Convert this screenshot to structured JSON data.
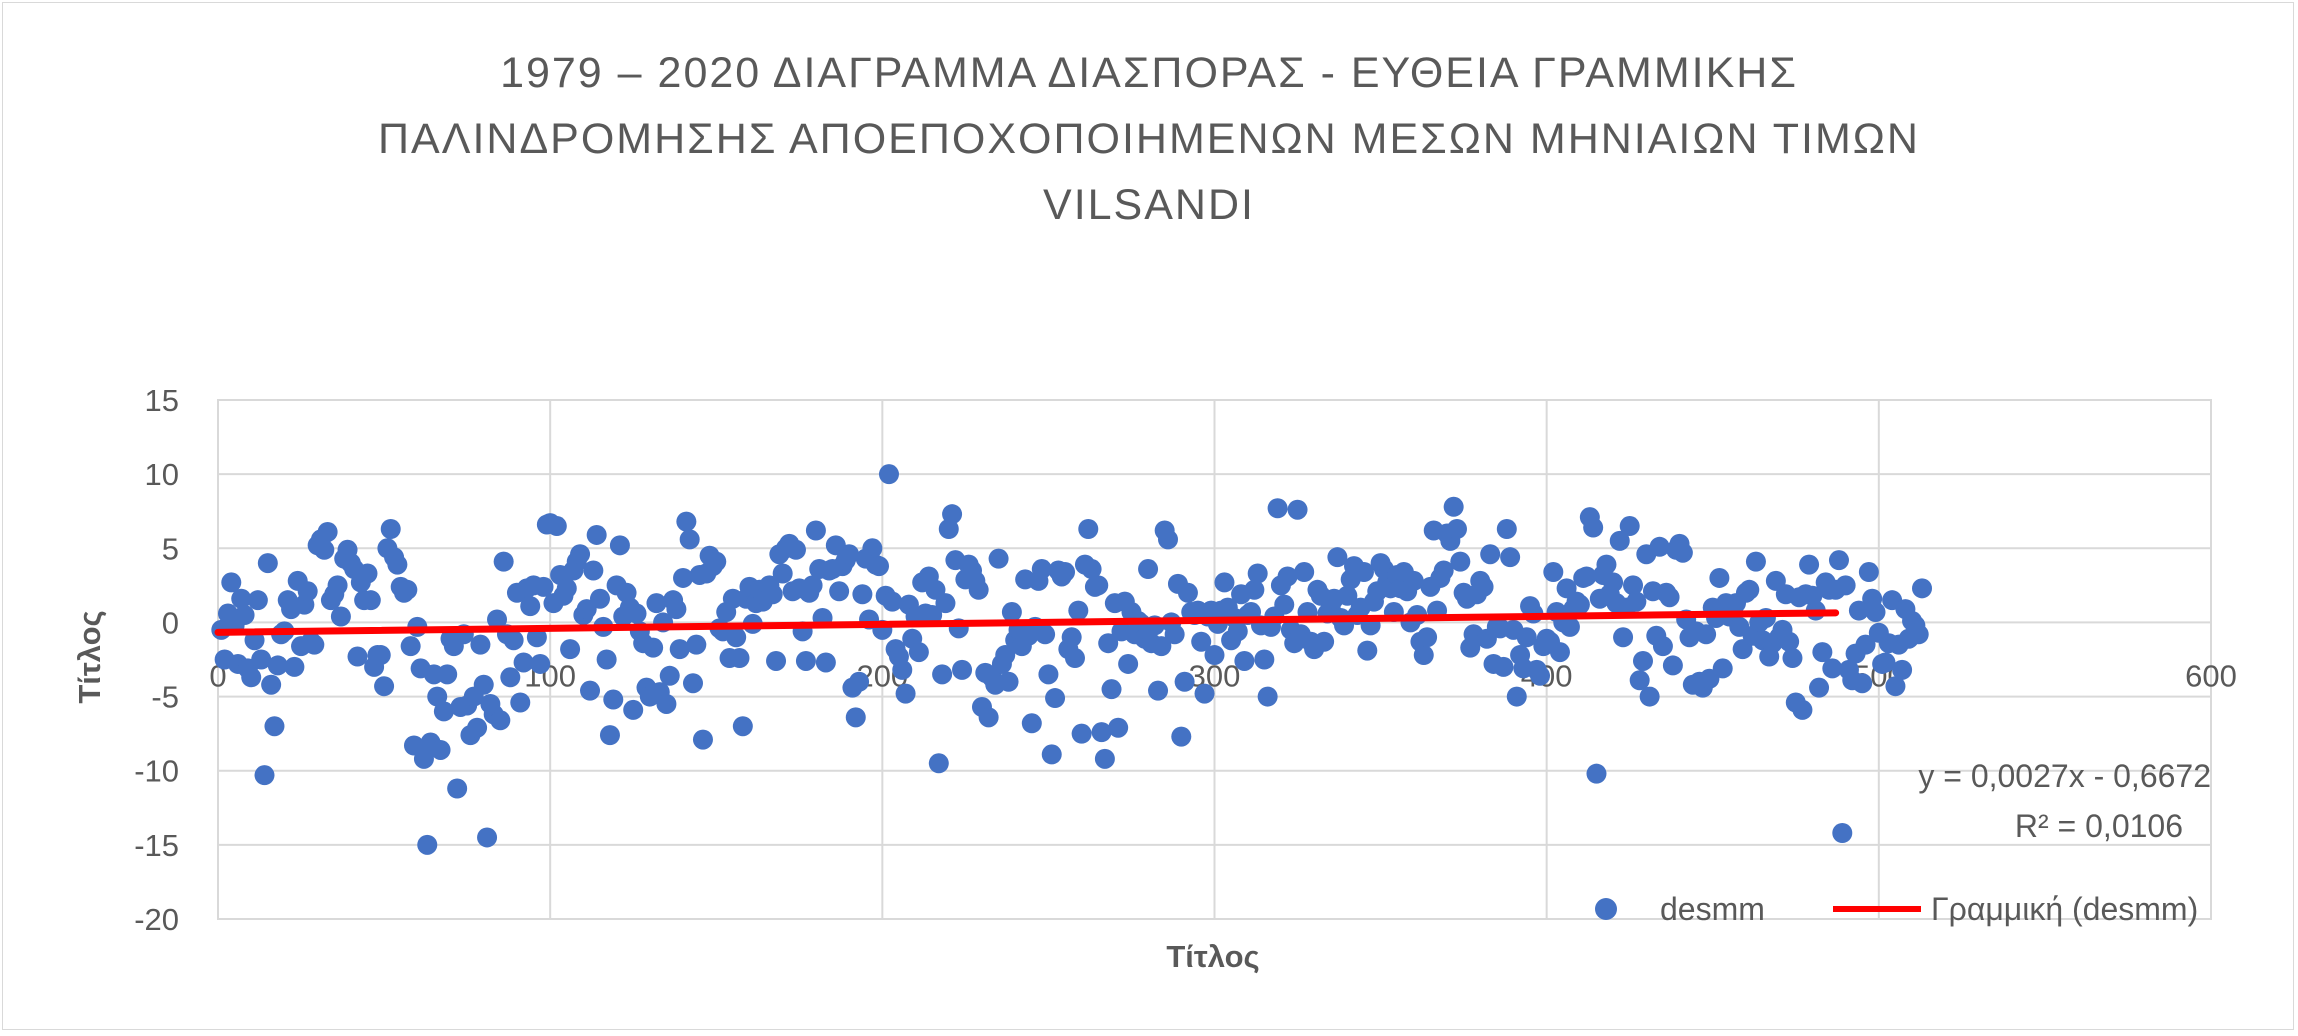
{
  "chart_data": {
    "type": "scatter",
    "title_lines": [
      "1979 – 2020 ΔΙΑΓΡΑΜΜΑ ΔΙΑΣΠΟΡΑΣ - ΕΥΘΕΙΑ ΓΡΑΜΜΙΚΗΣ",
      "ΠΑΛΙΝΔΡΟΜΗΣΗΣ ΑΠΟΕΠΟΧΟΠΟΙΗΜΕΝΩΝ ΜΕΣΩΝ ΜΗΝΙΑΙΩΝ ΤΙΜΩΝ",
      "VILSANDI"
    ],
    "xlabel": "Τίτλος",
    "ylabel": "Τίτλος",
    "xlim": [
      0,
      600
    ],
    "ylim": [
      -20,
      15
    ],
    "x_ticks": [
      0,
      100,
      200,
      300,
      400,
      500,
      600
    ],
    "y_ticks": [
      15,
      10,
      5,
      0,
      -5,
      -10,
      -15,
      -20
    ],
    "grid": true,
    "legend_position": "bottom-right",
    "series": [
      {
        "name": "desmm",
        "type": "scatter",
        "color": "#4472c4",
        "x_start": 1,
        "x_step": 1,
        "values": [
          -0.5,
          -2.5,
          0.6,
          2.7,
          -0.2,
          -2.8,
          1.6,
          0.5,
          -3.1,
          -3.7,
          -1.2,
          1.5,
          -2.5,
          -10.3,
          4.0,
          -4.2,
          -7.0,
          -2.9,
          -0.8,
          -0.6,
          1.5,
          0.9,
          -3.0,
          2.8,
          -1.6,
          1.2,
          2.1,
          -1.3,
          -1.5,
          5.2,
          5.6,
          4.9,
          6.1,
          1.5,
          1.9,
          2.5,
          0.4,
          4.3,
          4.9,
          4.0,
          3.6,
          -2.3,
          2.7,
          1.5,
          3.3,
          1.5,
          -3.0,
          -2.2,
          -2.2,
          -4.3,
          5.0,
          6.3,
          4.4,
          3.9,
          2.4,
          2.0,
          2.2,
          -1.6,
          -8.3,
          -0.3,
          -3.1,
          -9.2,
          -15.0,
          -8.1,
          -3.5,
          -5.0,
          -8.6,
          -6.0,
          -3.5,
          -1.1,
          -1.6,
          -11.2,
          -5.7,
          -0.8,
          -5.6,
          -7.6,
          -5.0,
          -7.1,
          -1.5,
          -4.2,
          -14.5,
          -5.5,
          -6.2,
          0.2,
          -6.6,
          4.1,
          -0.8,
          -3.7,
          -1.2,
          2.0,
          -5.4,
          -2.7,
          2.3,
          1.1,
          2.5,
          -1.0,
          -2.8,
          2.4,
          6.6,
          6.7,
          1.3,
          6.5,
          3.2,
          1.8,
          2.3,
          -1.8,
          3.5,
          4.1,
          4.6,
          0.5,
          0.9,
          -4.6,
          3.5,
          5.9,
          1.6,
          -0.3,
          -2.5,
          -7.6,
          -5.2,
          2.5,
          5.2,
          0.4,
          2.0,
          1.0,
          -5.9,
          0.6,
          -0.6,
          -1.4,
          -4.4,
          -5.0,
          -1.7,
          1.3,
          -4.7,
          0.0,
          -5.5,
          -3.6,
          1.5,
          0.9,
          -1.8,
          3.0,
          6.8,
          5.6,
          -4.1,
          -1.5,
          3.2,
          -7.9,
          3.3,
          4.5,
          3.8,
          4.1,
          -0.4,
          -0.6,
          0.7,
          -2.4,
          1.6,
          -1.0,
          -2.4,
          -7.0,
          1.6,
          2.4,
          -0.1,
          1.3,
          2.2,
          1.4,
          1.8,
          2.5,
          1.9,
          -2.6,
          4.6,
          3.3,
          5.0,
          5.3,
          2.1,
          4.9,
          2.3,
          -0.6,
          -2.6,
          2.0,
          2.5,
          6.2,
          3.6,
          0.3,
          -2.7,
          3.5,
          3.6,
          5.2,
          2.1,
          3.8,
          4.2,
          4.6,
          -4.4,
          -6.4,
          -4.0,
          1.9,
          4.3,
          0.2,
          5.0,
          3.9,
          3.8,
          -0.5,
          1.8,
          10.0,
          1.4,
          -1.8,
          -2.3,
          -3.2,
          -4.8,
          1.2,
          -1.1,
          0.4,
          -2.0,
          2.7,
          0.6,
          3.1,
          0.5,
          2.2,
          -9.5,
          -3.5,
          1.3,
          6.3,
          7.3,
          4.2,
          -0.4,
          -3.2,
          2.9,
          3.9,
          3.5,
          2.8,
          2.2,
          -5.7,
          -3.4,
          -6.4,
          -3.7,
          -4.2,
          4.3,
          -2.8,
          -2.2,
          -4.0,
          0.7,
          -1.2,
          -0.5,
          -1.6,
          2.9,
          -0.9,
          -6.8,
          -0.3,
          2.8,
          3.6,
          -0.8,
          -3.5,
          -8.9,
          -5.1,
          3.5,
          3.1,
          3.4,
          -1.8,
          -1.0,
          -2.4,
          0.8,
          -7.5,
          3.9,
          6.3,
          3.6,
          2.4,
          2.5,
          -7.4,
          -9.2,
          -1.4,
          -4.5,
          1.3,
          -7.1,
          -0.6,
          1.4,
          -2.8,
          0.7,
          -0.8,
          0.1,
          -0.1,
          -1.1,
          3.6,
          -1.4,
          -0.2,
          -4.6,
          -1.6,
          6.2,
          5.6,
          0.0,
          -0.8,
          2.6,
          -7.7,
          -4.0,
          2.0,
          0.7,
          0.5,
          0.8,
          -1.3,
          -4.8,
          0.4,
          0.8,
          -2.2,
          -0.1,
          0.8,
          2.7,
          1.0,
          -1.2,
          0.3,
          -0.6,
          1.9,
          -2.6,
          0.5,
          0.7,
          2.2,
          3.3,
          -0.2,
          -2.5,
          -5.0,
          -0.3,
          0.4,
          7.7,
          2.5,
          1.2,
          3.1,
          -0.5,
          -1.4,
          7.6,
          -0.8,
          3.4,
          0.7,
          -1.3,
          -1.8,
          2.2,
          1.8,
          -1.3,
          0.6,
          1.1,
          1.6,
          4.4,
          0.3,
          -0.2,
          1.8,
          2.9,
          3.8,
          0.5,
          1.0,
          3.4,
          -1.9,
          -0.2,
          1.4,
          2.1,
          4.0,
          3.6,
          2.7,
          2.3,
          0.7,
          3.2,
          2.3,
          3.4,
          2.1,
          0.0,
          2.8,
          0.5,
          -1.3,
          -2.2,
          -1.0,
          2.4,
          6.2,
          0.8,
          3.0,
          3.5,
          6.0,
          5.5,
          7.8,
          6.3,
          4.1,
          2.0,
          1.6,
          -1.7,
          -0.8,
          1.9,
          2.8,
          2.4,
          -1.1,
          4.6,
          -2.8,
          -0.3,
          -0.4,
          -3.0,
          6.3,
          4.4,
          -0.5,
          -5.0,
          -2.2,
          -3.1,
          -1.0,
          1.1,
          0.6,
          -3.2,
          -3.6,
          -1.6,
          -1.1,
          -1.3,
          3.4,
          0.7,
          -2.0,
          0.0,
          2.3,
          -0.3,
          0.9,
          1.4,
          1.2,
          3.0,
          3.1,
          7.1,
          6.4,
          -10.2,
          1.6,
          3.2,
          3.9,
          1.9,
          2.7,
          1.3,
          5.5,
          -1.0,
          1.0,
          6.5,
          2.5,
          1.4,
          -3.9,
          -2.6,
          4.6,
          -5.0,
          2.1,
          -0.9,
          5.1,
          -1.6,
          2.0,
          1.7,
          -2.9,
          4.9,
          5.3,
          4.7,
          0.2,
          -1.0,
          -4.2,
          -0.6,
          -4.0,
          -4.4,
          -0.8,
          -3.8,
          1.0,
          0.3,
          3.0,
          -3.1,
          1.3,
          0.4,
          1.0,
          1.3,
          -0.3,
          -1.8,
          2.0,
          2.2,
          -0.9,
          4.1,
          0.0,
          -1.2,
          0.3,
          -2.3,
          -1.4,
          2.8,
          -1.0,
          -0.5,
          1.9,
          -1.3,
          -2.4,
          -5.4,
          1.7,
          -5.9,
          1.9,
          3.9,
          1.8,
          0.8,
          -4.4,
          -2.0,
          2.7,
          2.2,
          -3.1,
          2.2,
          4.2,
          -14.2,
          2.5,
          -3.2,
          -3.9,
          -2.1,
          0.8,
          -4.1,
          -1.5,
          3.4,
          1.6,
          0.7,
          -0.7,
          -2.8,
          -2.7,
          -1.4,
          1.5,
          -4.3,
          -1.5,
          -3.2,
          0.9,
          -1.1,
          0.1,
          -0.2,
          -0.8,
          2.3
        ]
      },
      {
        "name": "Γραμμική (desmm)",
        "type": "trendline",
        "color": "#ff0000",
        "slope": 0.0027,
        "intercept": -0.6672,
        "x_range": [
          0,
          487
        ]
      }
    ],
    "annotation": {
      "equation": "y = 0,0027x - 0,6672",
      "r_squared": "R² = 0,0106"
    }
  }
}
